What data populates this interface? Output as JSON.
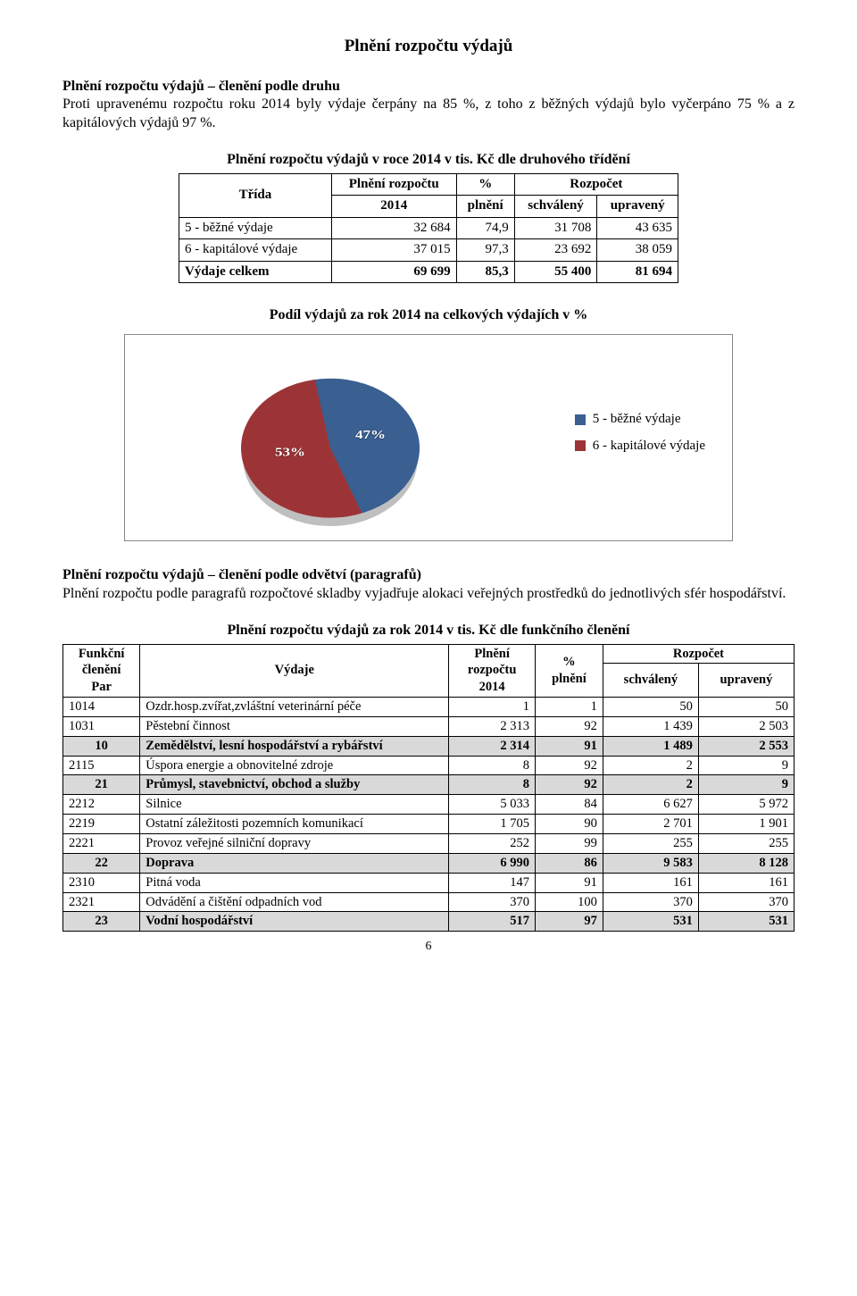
{
  "title": "Plnění rozpočtu výdajů",
  "section1": {
    "heading": "Plnění rozpočtu výdajů – členění podle druhu",
    "body": "Proti upravenému rozpočtu roku 2014 byly výdaje čerpány na 85 %, z toho z běžných výdajů bylo vyčerpáno 75 % a z kapitálových výdajů 97 %."
  },
  "table1": {
    "title": "Plnění rozpočtu výdajů v roce 2014 v tis. Kč dle druhového třídění",
    "head": {
      "c0": "Třída",
      "c1a": "Plnění rozpočtu",
      "c1b": "2014",
      "c2a": "%",
      "c2b": "plnění",
      "c3": "Rozpočet",
      "c3a": "schválený",
      "c3b": "upravený"
    },
    "rows": [
      {
        "trida": "5 - běžné výdaje",
        "plneni": "32 684",
        "pct": "74,9",
        "schv": "31 708",
        "upr": "43 635"
      },
      {
        "trida": "6 - kapitálové výdaje",
        "plneni": "37 015",
        "pct": "97,3",
        "schv": "23 692",
        "upr": "38 059"
      }
    ],
    "total": {
      "trida": "Výdaje celkem",
      "plneni": "69 699",
      "pct": "85,3",
      "schv": "55 400",
      "upr": "81 694"
    }
  },
  "chart": {
    "title": "Podíl výdajů za rok 2014 na celkových výdajích v %",
    "type": "pie-3d",
    "background_color": "#ffffff",
    "border_color": "#888888",
    "slices": [
      {
        "label": "53%",
        "value": 53,
        "color": "#9c3437",
        "legend": "6 - kapitálové výdaje"
      },
      {
        "label": "47%",
        "value": 47,
        "color": "#3a5f91",
        "legend": "5 - běžné výdaje"
      }
    ],
    "label_color": "#ffffff",
    "label_fontsize": 17,
    "legend_fontsize": 15,
    "legend_marker": "square"
  },
  "section2": {
    "heading": "Plnění rozpočtu výdajů – členění podle odvětví (paragrafů)",
    "body": "Plnění rozpočtu podle paragrafů rozpočtové skladby vyjadřuje alokaci veřejných prostředků do jednotlivých sfér hospodářství."
  },
  "table2": {
    "title": "Plnění rozpočtu výdajů za rok 2014 v tis. Kč dle funkčního členění",
    "head": {
      "c0a": "Funkční",
      "c0b": "členění",
      "c0c": "Par",
      "c1": "Výdaje",
      "c2a": "Plnění",
      "c2b": "rozpočtu",
      "c2c": "2014",
      "c3a": "%",
      "c3b": "plnění",
      "c4": "Rozpočet",
      "c4a": "schválený",
      "c4b": "upravený"
    },
    "rows": [
      {
        "par": "1014",
        "name": "Ozdr.hosp.zvířat,zvláštní veterinární péče",
        "p": "1",
        "pct": "1",
        "s": "50",
        "u": "50",
        "shade": false
      },
      {
        "par": "1031",
        "name": "Pěstební činnost",
        "p": "2 313",
        "pct": "92",
        "s": "1 439",
        "u": "2 503",
        "shade": false
      },
      {
        "par": "10",
        "name": "Zemědělství, lesní hospodářství a rybářství",
        "p": "2 314",
        "pct": "91",
        "s": "1 489",
        "u": "2 553",
        "shade": true
      },
      {
        "par": "2115",
        "name": "Úspora energie a obnovitelné zdroje",
        "p": "8",
        "pct": "92",
        "s": "2",
        "u": "9",
        "shade": false
      },
      {
        "par": "21",
        "name": "Průmysl, stavebnictví, obchod a služby",
        "p": "8",
        "pct": "92",
        "s": "2",
        "u": "9",
        "shade": true
      },
      {
        "par": "2212",
        "name": "Silnice",
        "p": "5 033",
        "pct": "84",
        "s": "6 627",
        "u": "5 972",
        "shade": false
      },
      {
        "par": "2219",
        "name": "Ostatní záležitosti pozemních komunikací",
        "p": "1 705",
        "pct": "90",
        "s": "2 701",
        "u": "1 901",
        "shade": false
      },
      {
        "par": "2221",
        "name": "Provoz veřejné silniční dopravy",
        "p": "252",
        "pct": "99",
        "s": "255",
        "u": "255",
        "shade": false
      },
      {
        "par": "22",
        "name": "Doprava",
        "p": "6 990",
        "pct": "86",
        "s": "9 583",
        "u": "8 128",
        "shade": true
      },
      {
        "par": "2310",
        "name": "Pitná voda",
        "p": "147",
        "pct": "91",
        "s": "161",
        "u": "161",
        "shade": false
      },
      {
        "par": "2321",
        "name": "Odvádění a čištění odpadních vod",
        "p": "370",
        "pct": "100",
        "s": "370",
        "u": "370",
        "shade": false
      },
      {
        "par": "23",
        "name": "Vodní hospodářství",
        "p": "517",
        "pct": "97",
        "s": "531",
        "u": "531",
        "shade": true
      }
    ]
  },
  "page_number": "6"
}
